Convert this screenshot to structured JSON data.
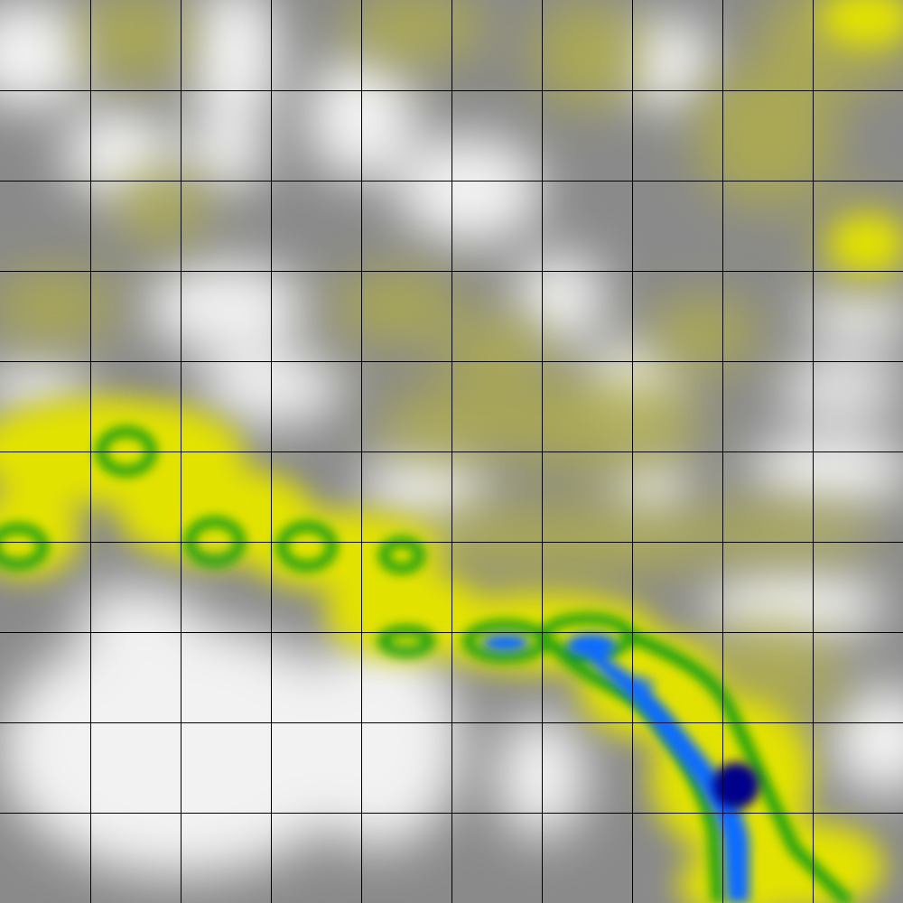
{
  "map": {
    "type": "raster-heatmap",
    "grid": {
      "rows": 10,
      "cols": 10,
      "line_color": "#000000",
      "visible": true
    },
    "palette": {
      "low": "#8a8a8a",
      "light": "#f2f2f2",
      "mid": "#b5b242",
      "high": "#e2e200",
      "peak_ring": "#1fa00a",
      "peak_core": "#0a6cff",
      "max": "#00008a"
    }
  }
}
